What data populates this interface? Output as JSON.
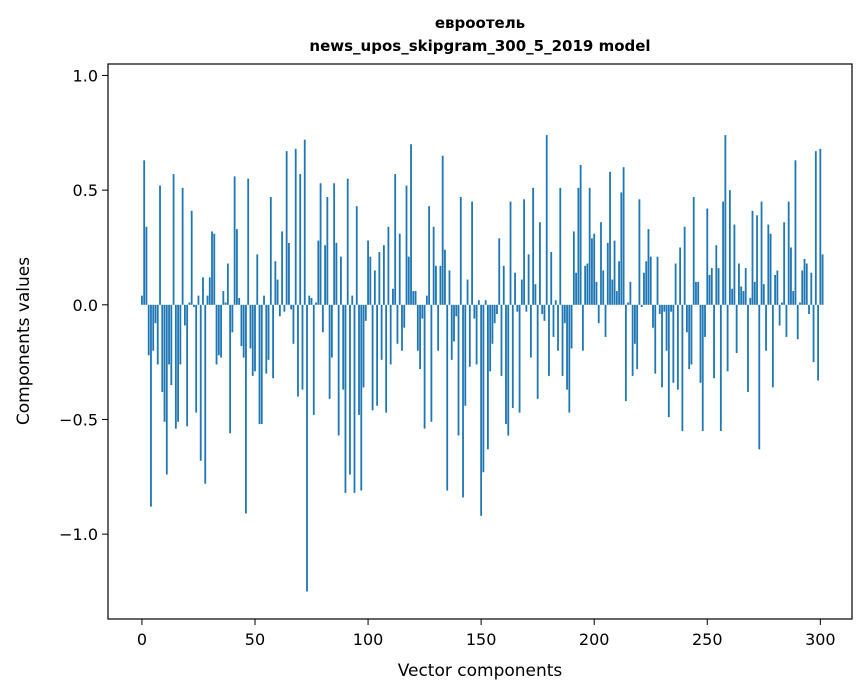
{
  "chart_data": {
    "type": "bar",
    "title": "евроотель",
    "subtitle": "news_upos_skipgram_300_5_2019 model",
    "xlabel": "Vector components",
    "ylabel": "Components values",
    "xlim": [
      -15,
      314
    ],
    "ylim": [
      -1.37,
      1.05
    ],
    "x_ticks": [
      0,
      50,
      100,
      150,
      200,
      250,
      300
    ],
    "x_tick_labels": [
      "0",
      "50",
      "100",
      "150",
      "200",
      "250",
      "300"
    ],
    "y_ticks": [
      -1.0,
      -0.5,
      0.0,
      0.5,
      1.0
    ],
    "y_tick_labels": [
      "−1.0",
      "−0.5",
      "0.0",
      "0.5",
      "1.0"
    ],
    "bar_color": "#1f77b4",
    "grid": false,
    "values": [
      0.04,
      0.63,
      0.34,
      -0.22,
      -0.88,
      -0.2,
      -0.08,
      -0.26,
      0.52,
      -0.38,
      -0.51,
      -0.74,
      -0.26,
      -0.35,
      0.57,
      -0.54,
      -0.51,
      -0.26,
      0.51,
      -0.09,
      -0.53,
      0.01,
      0.41,
      -0.01,
      -0.47,
      0.04,
      -0.68,
      0.12,
      -0.78,
      0.04,
      0.12,
      0.32,
      0.31,
      -0.26,
      -0.22,
      -0.23,
      0.06,
      0.01,
      0.18,
      -0.56,
      -0.12,
      0.56,
      0.33,
      0.03,
      -0.18,
      -0.23,
      -0.91,
      0.55,
      -0.19,
      -0.31,
      -0.29,
      0.22,
      -0.52,
      -0.52,
      0.04,
      -0.3,
      -0.24,
      0.47,
      -0.32,
      0.19,
      0.11,
      -0.05,
      0.32,
      -0.03,
      0.67,
      0.27,
      -0.02,
      -0.17,
      0.68,
      -0.4,
      0.57,
      -0.37,
      0.72,
      -1.25,
      0.04,
      0.03,
      -0.48,
      0.01,
      0.28,
      0.53,
      -0.12,
      0.26,
      0.47,
      -0.41,
      -0.23,
      0.53,
      0.27,
      -0.57,
      0.21,
      -0.37,
      -0.82,
      0.55,
      -0.74,
      0.04,
      -0.82,
      0.43,
      -0.48,
      -0.81,
      -0.36,
      -0.07,
      0.28,
      0.21,
      -0.46,
      0.15,
      -0.44,
      0.23,
      -0.24,
      0.26,
      -0.47,
      0.34,
      -0.26,
      0.07,
      0.57,
      -0.17,
      0.31,
      -0.2,
      -0.1,
      0.52,
      0.21,
      0.7,
      0.06,
      0.06,
      -0.2,
      -0.28,
      -0.06,
      -0.54,
      0.04,
      0.43,
      -0.51,
      0.34,
      0.17,
      -0.2,
      0.17,
      0.65,
      0.24,
      -0.81,
      0.15,
      -0.24,
      -0.16,
      -0.05,
      -0.57,
      0.47,
      -0.84,
      -0.44,
      0.11,
      -0.27,
      0.45,
      -0.06,
      -0.26,
      0.02,
      -0.92,
      -0.73,
      0.02,
      -0.63,
      -0.29,
      -0.17,
      -0.08,
      -0.04,
      0.29,
      -0.31,
      0.17,
      -0.52,
      -0.57,
      0.45,
      -0.45,
      0.14,
      -0.03,
      -0.47,
      0.11,
      0.46,
      -0.03,
      0.22,
      -0.23,
      0.51,
      0.09,
      -0.41,
      0.36,
      -0.04,
      -0.07,
      0.74,
      -0.31,
      0.23,
      -0.14,
      0.02,
      -0.2,
      0.51,
      -0.31,
      -0.08,
      -0.37,
      -0.47,
      -0.19,
      0.32,
      0.14,
      0.51,
      0.61,
      -0.2,
      0.17,
      0.18,
      0.51,
      0.29,
      0.31,
      0.1,
      -0.08,
      0.36,
      0.15,
      -0.14,
      0.27,
      0.58,
      0.11,
      0.28,
      0.06,
      0.19,
      0.49,
      0.6,
      -0.42,
      0.01,
      0.1,
      -0.31,
      -0.17,
      -0.28,
      0.46,
      -0.01,
      0.14,
      0.19,
      0.33,
      0.21,
      -0.1,
      -0.3,
      0.21,
      -0.04,
      -0.36,
      -0.03,
      -0.2,
      -0.49,
      -0.03,
      -0.34,
      0.18,
      -0.37,
      0.25,
      -0.55,
      0.34,
      -0.12,
      -0.28,
      -0.26,
      0.47,
      0.1,
      0.1,
      -0.34,
      -0.55,
      -0.14,
      0.42,
      0.13,
      0.16,
      -0.32,
      0.26,
      0.16,
      -0.55,
      0.45,
      0.74,
      -0.29,
      0.5,
      0.07,
      0.35,
      -0.21,
      0.18,
      0.08,
      0.06,
      0.16,
      -0.38,
      0.03,
      0.41,
      0.1,
      0.39,
      -0.63,
      0.45,
      0.09,
      -0.2,
      0.35,
      0.31,
      -0.36,
      0.13,
      0.15,
      -0.09,
      0.01,
      0.36,
      -0.14,
      0.45,
      0.25,
      0.06,
      0.63,
      -0.15,
      0.01,
      0.15,
      0.2,
      0.18,
      -0.04,
      0.14,
      -0.25,
      0.67,
      -0.33,
      0.68,
      0.22
    ]
  }
}
